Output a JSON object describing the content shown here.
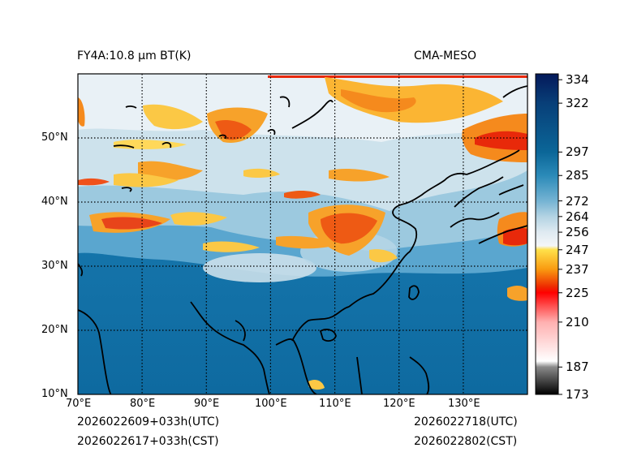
{
  "header": {
    "left_title": "FY4A:10.8 µm BT(K)",
    "right_title": "CMA-MESO"
  },
  "footer": {
    "init_utc": "2026022609+033h(UTC)",
    "init_cst": "2026022617+033h(CST)",
    "valid_utc": "2026022718(UTC)",
    "valid_cst": "2026022802(CST)"
  },
  "map": {
    "lon_labels": [
      "70°E",
      "80°E",
      "90°E",
      "100°E",
      "110°E",
      "120°E",
      "130°E"
    ],
    "lat_labels": [
      "10°N",
      "20°N",
      "30°N",
      "40°N",
      "50°N"
    ],
    "lon_range": [
      70,
      140
    ],
    "lat_range": [
      10,
      60
    ]
  },
  "colorbar": {
    "label_values": [
      "334",
      "322",
      "297",
      "285",
      "272",
      "264",
      "256",
      "247",
      "237",
      "225",
      "210",
      "187",
      "173"
    ],
    "range": [
      173,
      337
    ],
    "stops": [
      {
        "v": 173,
        "c": "#000000"
      },
      {
        "v": 187,
        "c": "#8a8a8a"
      },
      {
        "v": 190,
        "c": "#ffffff"
      },
      {
        "v": 210,
        "c": "#ffb0b0"
      },
      {
        "v": 225,
        "c": "#ff0000"
      },
      {
        "v": 228,
        "c": "#ee2a00"
      },
      {
        "v": 237,
        "c": "#f99a10"
      },
      {
        "v": 247,
        "c": "#ffe14a"
      },
      {
        "v": 249,
        "c": "#f4f6f8"
      },
      {
        "v": 256,
        "c": "#dfeaf1"
      },
      {
        "v": 264,
        "c": "#b3d3e3"
      },
      {
        "v": 272,
        "c": "#75b3d3"
      },
      {
        "v": 285,
        "c": "#2b8ab8"
      },
      {
        "v": 297,
        "c": "#0b6698"
      },
      {
        "v": 322,
        "c": "#083f78"
      },
      {
        "v": 337,
        "c": "#04195a"
      }
    ]
  }
}
